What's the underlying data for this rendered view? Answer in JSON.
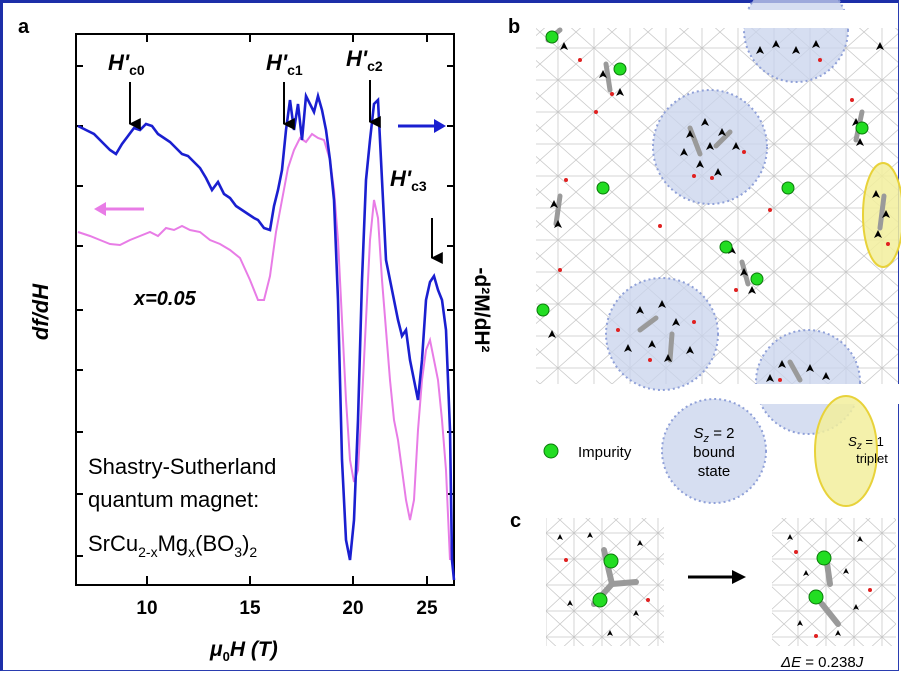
{
  "panel_a": {
    "label": "a",
    "y_left_label": "df/dH",
    "y_right_label": "-d²M/dH²",
    "x_label_prefix": "μ",
    "x_label_sub": "0",
    "x_label_main": "H (T)",
    "x_ticks": [
      "10",
      "15",
      "20",
      "25"
    ],
    "markers": [
      {
        "base": "H'",
        "sub": "c0"
      },
      {
        "base": "H'",
        "sub": "c1"
      },
      {
        "base": "H'",
        "sub": "c2"
      },
      {
        "base": "H'",
        "sub": "c3"
      }
    ],
    "x_value_label": "x=0.05",
    "caption_line1": "Shastry-Sutherland",
    "caption_line2": "quantum magnet:",
    "formula": {
      "p1": "SrCu",
      "s1": "2-x",
      "p2": "Mg",
      "s2": "x",
      "p3": "(BO",
      "s3": "3",
      "p4": ")",
      "s4": "2"
    },
    "colors": {
      "blue": "#1a1fd0",
      "pink": "#e87ce6"
    }
  },
  "panel_b": {
    "label": "b",
    "legend": {
      "impurity": "Impurity",
      "bound_state_line1": "S",
      "bound_state_sub": "z",
      "bound_state_rest": " = 2",
      "bound_state_line2": "bound",
      "bound_state_line3": "state",
      "triplet_line1": "S",
      "triplet_sub": "z",
      "triplet_rest": " = 1",
      "triplet_line2": "triplet"
    },
    "colors": {
      "impurity": "#22dd22",
      "bound": "#c8d3ec",
      "triplet": "#f2ee9c"
    }
  },
  "panel_c": {
    "label": "c",
    "energy_prefix": "ΔE",
    "energy_value": " = 0.238",
    "energy_unit": "J"
  }
}
